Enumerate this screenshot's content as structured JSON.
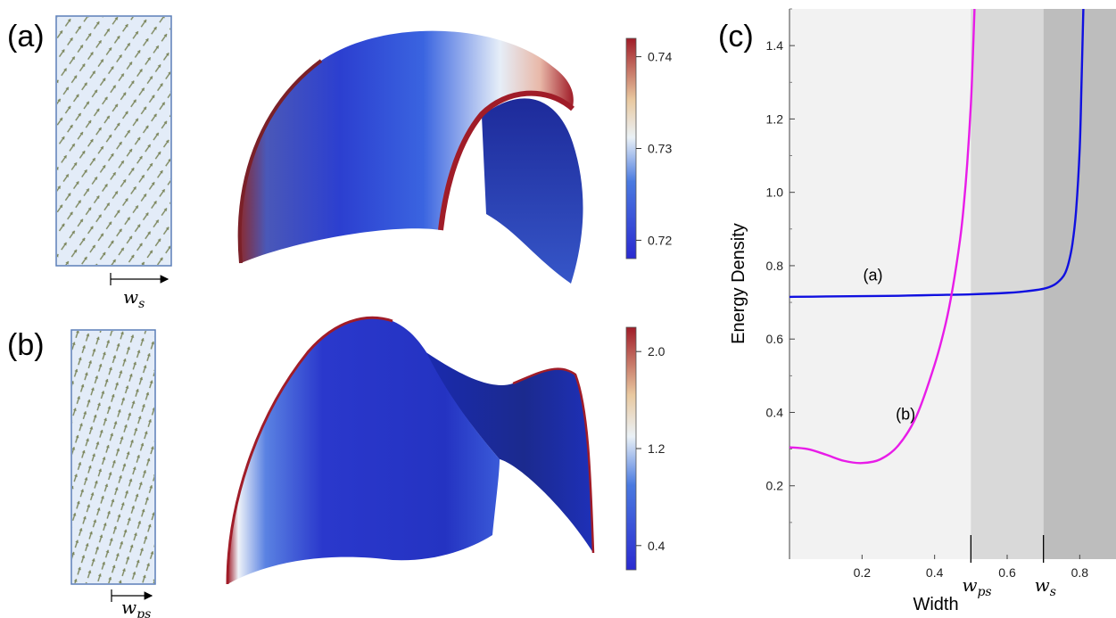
{
  "panel_labels": {
    "a": "(a)",
    "b": "(b)",
    "c": "(c)"
  },
  "inset_a": {
    "width_label": "w",
    "width_subscript": "s"
  },
  "inset_b": {
    "width_label": "w",
    "width_subscript": "ps"
  },
  "colorbar_a": {
    "ticks": [
      "0.74",
      "0.73",
      "0.72"
    ],
    "tick_values": [
      0.74,
      0.73,
      0.72
    ],
    "range": [
      0.718,
      0.742
    ]
  },
  "colorbar_b": {
    "ticks": [
      "2.0",
      "1.2",
      "0.4"
    ],
    "tick_values": [
      2.0,
      1.2,
      0.4
    ],
    "range": [
      0.2,
      2.2
    ]
  },
  "colors": {
    "curve_a": "#1010e0",
    "curve_b": "#e81ce8",
    "shade_light": "#f2f2f2",
    "shade_mid": "#d9d9d9",
    "shade_dark": "#bdbdbd",
    "surface_blue": "#2233cc",
    "surface_red": "#a01c28"
  },
  "chart_data": {
    "type": "line",
    "xlabel": "Width",
    "ylabel": "Energy Density",
    "xlim": [
      0.0,
      0.9
    ],
    "ylim": [
      0.0,
      1.5
    ],
    "x_ticks": [
      0.2,
      0.4,
      0.6,
      0.8
    ],
    "x_tick_labels": [
      "0.2",
      "0.4",
      "0.6",
      "0.8"
    ],
    "y_ticks": [
      0.2,
      0.4,
      0.6,
      0.8,
      1.0,
      1.2,
      1.4
    ],
    "y_tick_labels": [
      "0.2",
      "0.4",
      "0.6",
      "0.8",
      "1.0",
      "1.2",
      "1.4"
    ],
    "markers": [
      {
        "x": 0.5,
        "label": "w",
        "subscript": "ps"
      },
      {
        "x": 0.7,
        "label": "w",
        "subscript": "s"
      }
    ],
    "shaded_regions": [
      {
        "from": 0.0,
        "to": 0.5,
        "color": "#f2f2f2"
      },
      {
        "from": 0.5,
        "to": 0.7,
        "color": "#d9d9d9"
      },
      {
        "from": 0.7,
        "to": 0.9,
        "color": "#bdbdbd"
      }
    ],
    "series": [
      {
        "name": "(a)",
        "color": "#1010e0",
        "x": [
          0.0,
          0.1,
          0.2,
          0.3,
          0.4,
          0.5,
          0.6,
          0.65,
          0.7,
          0.73,
          0.75,
          0.76,
          0.77,
          0.78,
          0.79,
          0.8,
          0.805,
          0.81
        ],
        "y": [
          0.715,
          0.716,
          0.717,
          0.718,
          0.72,
          0.722,
          0.726,
          0.73,
          0.737,
          0.748,
          0.765,
          0.78,
          0.81,
          0.86,
          0.95,
          1.12,
          1.3,
          1.5
        ],
        "label_at": [
          0.23,
          0.76
        ]
      },
      {
        "name": "(b)",
        "color": "#e81ce8",
        "x": [
          0.0,
          0.05,
          0.1,
          0.15,
          0.2,
          0.25,
          0.3,
          0.35,
          0.4,
          0.43,
          0.45,
          0.47,
          0.48,
          0.49,
          0.5,
          0.505,
          0.51
        ],
        "y": [
          0.305,
          0.3,
          0.285,
          0.268,
          0.262,
          0.272,
          0.31,
          0.39,
          0.53,
          0.64,
          0.74,
          0.87,
          0.96,
          1.08,
          1.24,
          1.36,
          1.5
        ],
        "label_at": [
          0.32,
          0.38
        ]
      }
    ]
  }
}
